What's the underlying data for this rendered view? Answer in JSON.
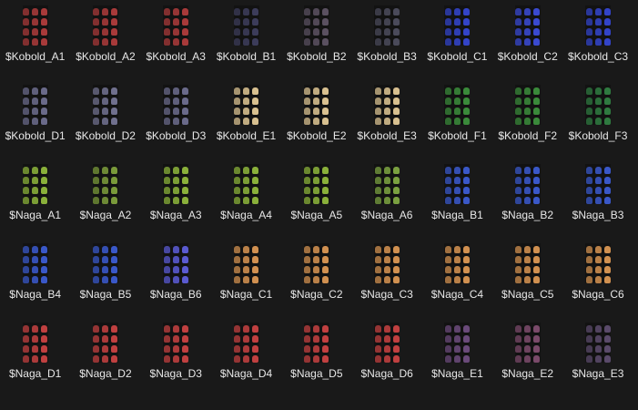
{
  "items": [
    {
      "name": "$Kobold_A1",
      "color": "#a83a3a"
    },
    {
      "name": "$Kobold_A2",
      "color": "#a83a3a"
    },
    {
      "name": "$Kobold_A3",
      "color": "#a83a3a"
    },
    {
      "name": "$Kobold_B1",
      "color": "#3c3c5a"
    },
    {
      "name": "$Kobold_B2",
      "color": "#5a5060"
    },
    {
      "name": "$Kobold_B3",
      "color": "#4a4a5a"
    },
    {
      "name": "$Kobold_C1",
      "color": "#3344c8"
    },
    {
      "name": "$Kobold_C2",
      "color": "#3a4ad0"
    },
    {
      "name": "$Kobold_C3",
      "color": "#3344c8"
    },
    {
      "name": "$Kobold_D1",
      "color": "#6a6a8a"
    },
    {
      "name": "$Kobold_D2",
      "color": "#70708e"
    },
    {
      "name": "$Kobold_D3",
      "color": "#6a6a8a"
    },
    {
      "name": "$Kobold_E1",
      "color": "#d8c090"
    },
    {
      "name": "$Kobold_E2",
      "color": "#d8c090"
    },
    {
      "name": "$Kobold_E3",
      "color": "#d8c090"
    },
    {
      "name": "$Kobold_F1",
      "color": "#3a8a3a"
    },
    {
      "name": "$Kobold_F2",
      "color": "#3a8a3a"
    },
    {
      "name": "$Kobold_F3",
      "color": "#2f7a40"
    },
    {
      "name": "$Naga_A1",
      "color": "#8ab03a"
    },
    {
      "name": "$Naga_A2",
      "color": "#7a9a3a"
    },
    {
      "name": "$Naga_A3",
      "color": "#8ab03a"
    },
    {
      "name": "$Naga_A4",
      "color": "#8ab03a"
    },
    {
      "name": "$Naga_A5",
      "color": "#8ab03a"
    },
    {
      "name": "$Naga_A6",
      "color": "#7aa040"
    },
    {
      "name": "$Naga_B1",
      "color": "#3a58c8"
    },
    {
      "name": "$Naga_B2",
      "color": "#3a58c8"
    },
    {
      "name": "$Naga_B3",
      "color": "#3a58c8"
    },
    {
      "name": "$Naga_B4",
      "color": "#3a58c8"
    },
    {
      "name": "$Naga_B5",
      "color": "#3a58c8"
    },
    {
      "name": "$Naga_B6",
      "color": "#5a5ad0"
    },
    {
      "name": "$Naga_C1",
      "color": "#d09050"
    },
    {
      "name": "$Naga_C2",
      "color": "#d09050"
    },
    {
      "name": "$Naga_C3",
      "color": "#d09050"
    },
    {
      "name": "$Naga_C4",
      "color": "#d09050"
    },
    {
      "name": "$Naga_C5",
      "color": "#d09050"
    },
    {
      "name": "$Naga_C6",
      "color": "#d09050"
    },
    {
      "name": "$Naga_D1",
      "color": "#c04040"
    },
    {
      "name": "$Naga_D2",
      "color": "#c04040"
    },
    {
      "name": "$Naga_D3",
      "color": "#c04040"
    },
    {
      "name": "$Naga_D4",
      "color": "#c04040"
    },
    {
      "name": "$Naga_D5",
      "color": "#c04040"
    },
    {
      "name": "$Naga_D6",
      "color": "#c04040"
    },
    {
      "name": "$Naga_E1",
      "color": "#6a4a7a"
    },
    {
      "name": "$Naga_E2",
      "color": "#7a4a6a"
    },
    {
      "name": "$Naga_E3",
      "color": "#5a4a6a"
    }
  ]
}
